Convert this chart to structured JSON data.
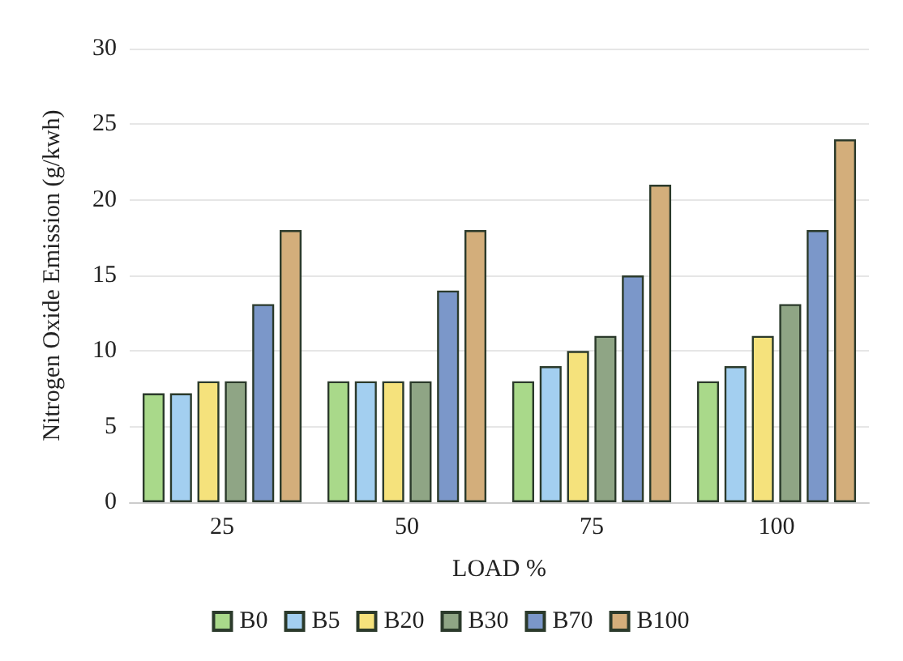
{
  "chart_data": {
    "type": "bar",
    "xlabel": "LOAD %",
    "ylabel": "Nitrogen Oxide Emission (g/kwh)",
    "categories": [
      "25",
      "50",
      "75",
      "100"
    ],
    "series": [
      {
        "name": "B0",
        "color": "#a9d98a",
        "values": [
          7.2,
          8,
          8,
          8
        ]
      },
      {
        "name": "B5",
        "color": "#a3cff0",
        "values": [
          7.2,
          8,
          9,
          9
        ]
      },
      {
        "name": "B20",
        "color": "#f5e27c",
        "values": [
          8,
          8,
          10,
          11
        ]
      },
      {
        "name": "B30",
        "color": "#8fa585",
        "values": [
          8,
          8,
          11,
          13.1
        ]
      },
      {
        "name": "B70",
        "color": "#7b97c9",
        "values": [
          13.1,
          14,
          15,
          18
        ]
      },
      {
        "name": "B100",
        "color": "#d3ae7b",
        "values": [
          18,
          18,
          21,
          24
        ]
      }
    ],
    "ylim": [
      0,
      30
    ],
    "yticks": [
      0,
      5,
      10,
      15,
      20,
      25,
      30
    ],
    "grid": "y",
    "legend": "bottom"
  }
}
